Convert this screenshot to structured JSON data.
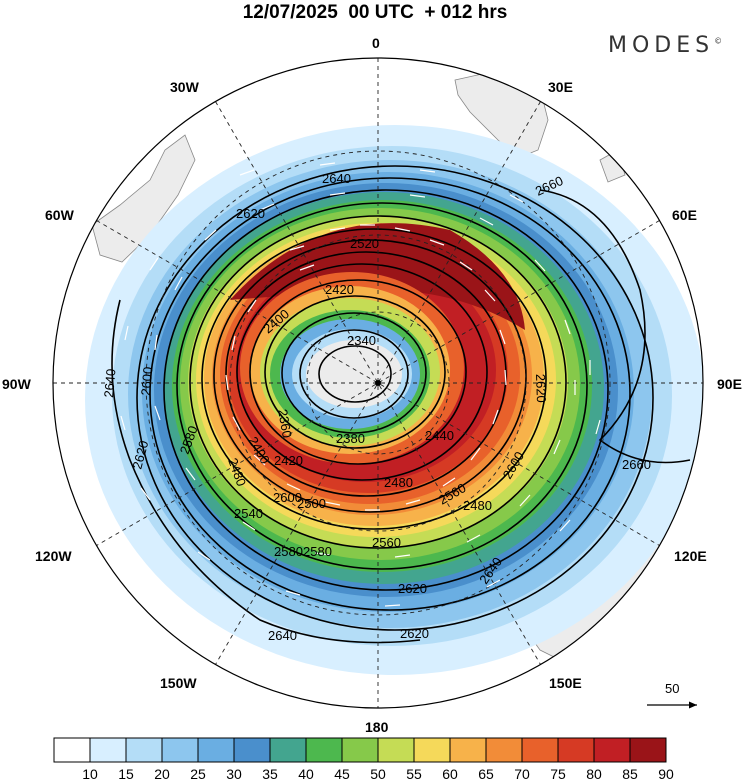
{
  "title": "12/07/2025  00 UTC  + 012 hrs",
  "brand": "MODES",
  "brand_mark": "©",
  "lon_labels": {
    "n0": "0",
    "w30": "30W",
    "e30": "30E",
    "w60": "60W",
    "e60": "60E",
    "w90": "90W",
    "e90": "90E",
    "w120": "120W",
    "e120": "120E",
    "w150": "150W",
    "e150": "150E",
    "s180": "180"
  },
  "contour_labels": [
    "2640",
    "2620",
    "2660",
    "2640",
    "2600",
    "2620",
    "2620",
    "2600",
    "2580",
    "2580",
    "2420",
    "2400",
    "2340",
    "2380",
    "2360",
    "2480",
    "2400",
    "2420",
    "2440",
    "2480",
    "2500",
    "2540",
    "2560",
    "2580",
    "2560",
    "2620",
    "2600",
    "2640",
    "2640",
    "2660",
    "2520",
    "2480",
    "2620"
  ],
  "vector_reference": "50",
  "colorbar": {
    "ticks": [
      "10",
      "15",
      "20",
      "25",
      "30",
      "35",
      "40",
      "45",
      "50",
      "55",
      "60",
      "65",
      "70",
      "75",
      "80",
      "85",
      "90"
    ],
    "colors": [
      "#ffffff",
      "#d8efff",
      "#b4ddf7",
      "#8dc6ee",
      "#6aaee2",
      "#4a8fcc",
      "#43a58f",
      "#4db84e",
      "#86c94a",
      "#c5dc55",
      "#f5d95a",
      "#f7b24a",
      "#f28c38",
      "#e8612b",
      "#d63a24",
      "#c11f24",
      "#9a1418"
    ]
  }
}
